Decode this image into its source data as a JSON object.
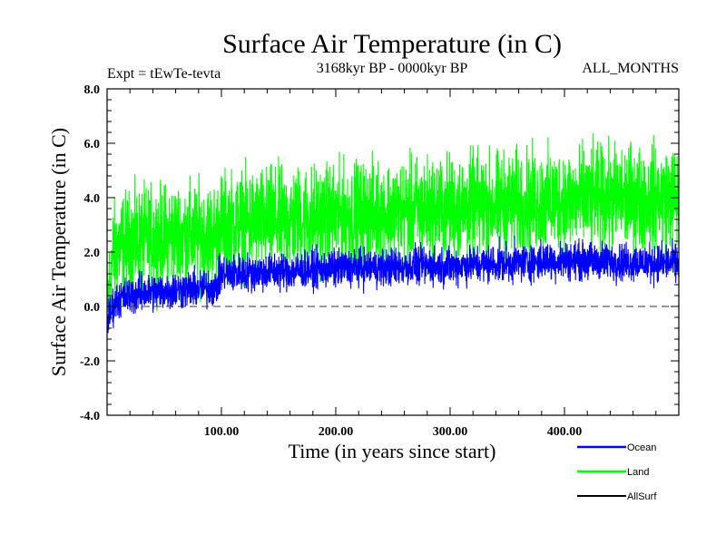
{
  "chart_data": {
    "type": "line",
    "title": "Surface Air Temperature (in C)",
    "expt_label": "Expt = tEwTe-tevta",
    "period_label": "3168kyr BP - 0000kyr BP",
    "months_label": "ALL_MONTHS",
    "xlabel": "Time (in years since start)",
    "ylabel": "Surface Air Temperature (in C)",
    "xlim": [
      0,
      500
    ],
    "ylim": [
      -4.0,
      8.0
    ],
    "x_ticks": [
      100,
      200,
      300,
      400
    ],
    "x_tick_labels": [
      "100.00",
      "200.00",
      "300.00",
      "400.00"
    ],
    "y_ticks": [
      -4,
      -2,
      0,
      2,
      4,
      6,
      8
    ],
    "y_tick_labels": [
      "-4.0",
      "-2.0",
      "0.0",
      "2.0",
      "4.0",
      "6.0",
      "8.0"
    ],
    "reference_line": {
      "y": 0.0,
      "style": "dashed"
    },
    "series": [
      {
        "name": "Land",
        "color": "#00ff00",
        "draw_order": 0,
        "trend_x": [
          0,
          5,
          10,
          30,
          60,
          95,
          100,
          130,
          200,
          300,
          400,
          490
        ],
        "trend_y": [
          0.0,
          1.8,
          2.2,
          2.4,
          2.6,
          2.6,
          3.0,
          3.1,
          3.3,
          3.6,
          3.9,
          4.0
        ],
        "noise_amplitude": 1.5
      },
      {
        "name": "Ocean",
        "color": "#0000ff",
        "draw_order": 1,
        "trend_x": [
          0,
          5,
          10,
          30,
          60,
          95,
          100,
          150,
          200,
          300,
          400,
          490
        ],
        "trend_y": [
          -0.6,
          0.0,
          0.3,
          0.5,
          0.6,
          0.7,
          1.2,
          1.3,
          1.4,
          1.5,
          1.7,
          1.6
        ],
        "noise_amplitude": 0.55
      },
      {
        "name": "AllSurf",
        "color": "#000000",
        "draw_order": 2,
        "trend_x": [],
        "trend_y": [],
        "noise_amplitude": 0
      }
    ],
    "legend": {
      "placement": "bottom-right",
      "entries": [
        "Ocean",
        "Land",
        "AllSurf"
      ]
    }
  }
}
